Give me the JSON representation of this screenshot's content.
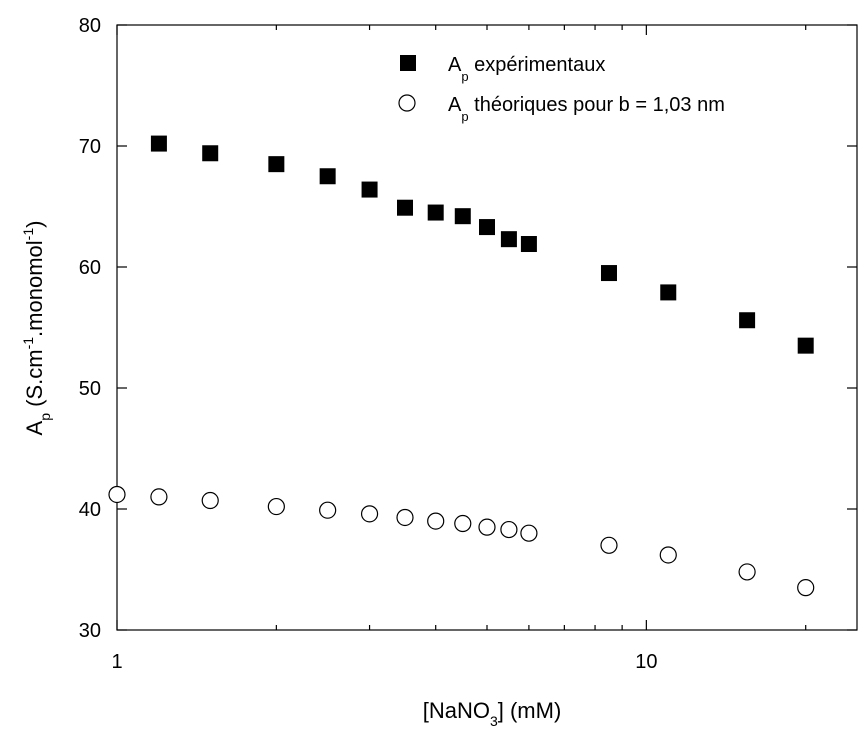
{
  "chart_data": {
    "type": "scatter",
    "x_scale": "log",
    "xlim": [
      1,
      25
    ],
    "ylim": [
      30,
      80
    ],
    "x_ticks": [
      {
        "value": 1,
        "label": "1"
      },
      {
        "value": 10,
        "label": "10"
      }
    ],
    "y_ticks": [
      {
        "value": 30,
        "label": "30"
      },
      {
        "value": 40,
        "label": "40"
      },
      {
        "value": 50,
        "label": "50"
      },
      {
        "value": 60,
        "label": "60"
      },
      {
        "value": 70,
        "label": "70"
      },
      {
        "value": 80,
        "label": "80"
      }
    ],
    "xlabel": {
      "pre": "[NaNO",
      "sub": "3",
      "post": "] (mM)"
    },
    "ylabel": {
      "pre": "A",
      "sub": "p",
      "mid": " (S.cm",
      "sup1": "-1",
      "mid2": ".monomol",
      "sup2": "-1",
      "post": ")"
    },
    "grid": false,
    "legend_position": "top-right",
    "series": [
      {
        "name_main": "A",
        "name_sub": "p",
        "name_rest": " expérimentaux",
        "marker": "filled-square",
        "color": "#000000",
        "points": [
          {
            "x": 1.2,
            "y": 70.2
          },
          {
            "x": 1.5,
            "y": 69.4
          },
          {
            "x": 2.0,
            "y": 68.5
          },
          {
            "x": 2.5,
            "y": 67.5
          },
          {
            "x": 3.0,
            "y": 66.4
          },
          {
            "x": 3.5,
            "y": 64.9
          },
          {
            "x": 4.0,
            "y": 64.5
          },
          {
            "x": 4.5,
            "y": 64.2
          },
          {
            "x": 5.0,
            "y": 63.3
          },
          {
            "x": 5.5,
            "y": 62.3
          },
          {
            "x": 6.0,
            "y": 61.9
          },
          {
            "x": 8.5,
            "y": 59.5
          },
          {
            "x": 11.0,
            "y": 57.9
          },
          {
            "x": 15.5,
            "y": 55.6
          },
          {
            "x": 20.0,
            "y": 53.5
          }
        ]
      },
      {
        "name_main": "A",
        "name_sub": "p",
        "name_rest": " théoriques pour b = 1,03 nm",
        "marker": "open-circle",
        "color": "#000000",
        "points": [
          {
            "x": 1.0,
            "y": 41.2
          },
          {
            "x": 1.2,
            "y": 41.0
          },
          {
            "x": 1.5,
            "y": 40.7
          },
          {
            "x": 2.0,
            "y": 40.2
          },
          {
            "x": 2.5,
            "y": 39.9
          },
          {
            "x": 3.0,
            "y": 39.6
          },
          {
            "x": 3.5,
            "y": 39.3
          },
          {
            "x": 4.0,
            "y": 39.0
          },
          {
            "x": 4.5,
            "y": 38.8
          },
          {
            "x": 5.0,
            "y": 38.5
          },
          {
            "x": 5.5,
            "y": 38.3
          },
          {
            "x": 6.0,
            "y": 38.0
          },
          {
            "x": 8.5,
            "y": 37.0
          },
          {
            "x": 11.0,
            "y": 36.2
          },
          {
            "x": 15.5,
            "y": 34.8
          },
          {
            "x": 20.0,
            "y": 33.5
          }
        ]
      }
    ]
  }
}
